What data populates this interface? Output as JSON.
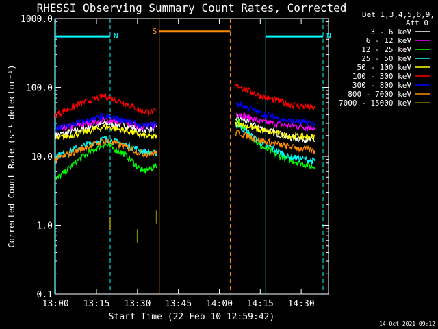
{
  "chart_data": {
    "type": "line",
    "title": "RHESSI Observing Summary Count Rates, Corrected",
    "xlabel": "Start Time (22-Feb-10 12:59:42)",
    "ylabel": "Corrected Count Rate (s⁻¹ detector⁻¹)",
    "y_scale": "log",
    "ylim": [
      0.1,
      1000
    ],
    "xlim": [
      "12:59:42",
      "14:40:00"
    ],
    "x_ticks": [
      "13:00",
      "13:15",
      "13:30",
      "13:45",
      "14:00",
      "14:15",
      "14:30"
    ],
    "y_ticks": [
      "0.1",
      "1.0",
      "10.0",
      "100.0",
      "1000.0"
    ],
    "legend_title": [
      "Det 1,3,4,5,6,9,",
      "Att 0"
    ],
    "legend_position": "outside-right",
    "series": [
      {
        "name": "3 - 6 keV",
        "color": "#ffffff",
        "x": [
          "13:00",
          "13:10",
          "13:18",
          "13:25",
          "13:32",
          "13:36",
          "14:07",
          "14:15",
          "14:25",
          "14:35"
        ],
        "y": [
          20,
          25,
          30,
          28,
          24,
          25,
          36,
          26,
          19,
          17
        ]
      },
      {
        "name": "6 - 12 keV",
        "color": "#ff00ff",
        "x": [
          "13:00",
          "13:10",
          "13:18",
          "13:25",
          "13:32",
          "13:36",
          "14:07",
          "14:15",
          "14:25",
          "14:35"
        ],
        "y": [
          24,
          29,
          34,
          31,
          27,
          28,
          42,
          32,
          28,
          26
        ]
      },
      {
        "name": "12 - 25 keV",
        "color": "#00ff00",
        "x": [
          "13:00",
          "13:10",
          "13:18",
          "13:25",
          "13:32",
          "13:36",
          "14:07",
          "14:15",
          "14:25",
          "14:35"
        ],
        "y": [
          4.5,
          10,
          15,
          11,
          6,
          7,
          32,
          14,
          9,
          7
        ]
      },
      {
        "name": "25 - 50 keV",
        "color": "#00ffff",
        "x": [
          "13:00",
          "13:10",
          "13:18",
          "13:25",
          "13:32",
          "13:36",
          "14:07",
          "14:15",
          "14:25",
          "14:35"
        ],
        "y": [
          10,
          14,
          18,
          15,
          12,
          11,
          28,
          16,
          10,
          8.5
        ]
      },
      {
        "name": "50 - 100 keV",
        "color": "#ffff00",
        "x": [
          "13:00",
          "13:10",
          "13:18",
          "13:25",
          "13:32",
          "13:36",
          "14:07",
          "14:15",
          "14:25",
          "14:35"
        ],
        "y": [
          18,
          22,
          27,
          24,
          20,
          19,
          30,
          24,
          20,
          19
        ]
      },
      {
        "name": "100 - 300 keV",
        "color": "#ff0000",
        "x": [
          "13:00",
          "13:10",
          "13:18",
          "13:25",
          "13:32",
          "13:36",
          "14:07",
          "14:15",
          "14:25",
          "14:35"
        ],
        "y": [
          40,
          60,
          75,
          60,
          45,
          44,
          105,
          75,
          58,
          50
        ]
      },
      {
        "name": "300 - 800 keV",
        "color": "#0000ff",
        "x": [
          "13:00",
          "13:10",
          "13:18",
          "13:25",
          "13:32",
          "13:36",
          "14:07",
          "14:15",
          "14:25",
          "14:35"
        ],
        "y": [
          25,
          32,
          38,
          34,
          27,
          29,
          58,
          42,
          33,
          30
        ]
      },
      {
        "name": "800 - 7000 keV",
        "color": "#ff8c00",
        "x": [
          "13:00",
          "13:10",
          "13:18",
          "13:25",
          "13:32",
          "13:36",
          "14:07",
          "14:15",
          "14:25",
          "14:35"
        ],
        "y": [
          9,
          13,
          17,
          14,
          11,
          11,
          22,
          17,
          14,
          12
        ]
      },
      {
        "name": "7000 - 15000 keV",
        "color": "#808000",
        "x": [
          "13:20",
          "13:30",
          "13:37"
        ],
        "y": [
          1.05,
          0.7,
          1.3
        ]
      }
    ],
    "flag_bars": [
      {
        "label": "N",
        "color": "#00ffff",
        "start": "12:59:42",
        "end": "13:20:00",
        "level": 550
      },
      {
        "label": "N",
        "color": "#00ffff",
        "start": "14:17:00",
        "end": "14:38:00",
        "level": 550
      },
      {
        "label": "S",
        "color": "#ff8c00",
        "start": "13:38:00",
        "end": "14:04:00",
        "level": 650
      }
    ],
    "vlines": [
      {
        "time": "13:00:00",
        "color": "#00ffff",
        "style": "solid"
      },
      {
        "time": "13:20:00",
        "color": "#00ffff",
        "style": "dashed"
      },
      {
        "time": "14:17:00",
        "color": "#00ffff",
        "style": "solid"
      },
      {
        "time": "14:38:00",
        "color": "#00ffff",
        "style": "dashed"
      },
      {
        "time": "13:38:00",
        "color": "#ff8c00",
        "style": "solid"
      },
      {
        "time": "14:04:00",
        "color": "#ff8c00",
        "style": "dashed"
      }
    ],
    "grid": false
  },
  "footer": {
    "timestamp": "14-Oct-2021 09:12"
  }
}
